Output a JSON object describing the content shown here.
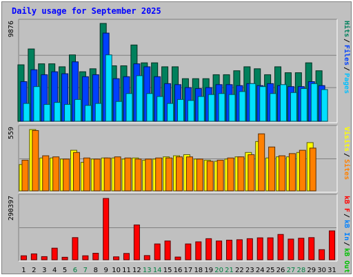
{
  "chart_data": {
    "type": "bar",
    "title": "Daily usage for September 2025",
    "categories": [
      "1",
      "2",
      "3",
      "4",
      "5",
      "6",
      "7",
      "8",
      "9",
      "10",
      "11",
      "12",
      "13",
      "14",
      "15",
      "16",
      "17",
      "18",
      "19",
      "20",
      "21",
      "22",
      "23",
      "24",
      "25",
      "26",
      "27",
      "28",
      "29",
      "30",
      "31"
    ],
    "weekend_days": [
      "6",
      "7",
      "13",
      "14",
      "20",
      "21",
      "27",
      "28"
    ],
    "panels": [
      {
        "name": "hits-files-pages",
        "ymax_label": "9876",
        "ymax": 9876,
        "legend": [
          {
            "label": "Hits",
            "color": "#00805c"
          },
          {
            "label": "Files",
            "color": "#0040ff"
          },
          {
            "label": "Pages",
            "color": "#00c0ff"
          }
        ],
        "series": [
          {
            "name": "Hits",
            "color": "#00805c",
            "values": [
              5700,
              7300,
              5800,
              5800,
              5500,
              6700,
              5000,
              5300,
              9876,
              5600,
              5600,
              7700,
              5900,
              5900,
              5500,
              5500,
              4300,
              4300,
              4300,
              4700,
              4700,
              5100,
              5500,
              5300,
              4700,
              5500,
              4900,
              4900,
              5900,
              5100,
              null
            ]
          },
          {
            "name": "Files",
            "color": "#0040ff",
            "values": [
              4000,
              5200,
              4700,
              5000,
              4800,
              6000,
              4500,
              4700,
              8900,
              4300,
              4500,
              5800,
              5500,
              4500,
              3800,
              3700,
              3400,
              3300,
              3400,
              3700,
              3700,
              3600,
              3800,
              3600,
              3800,
              3600,
              3500,
              3500,
              4000,
              3600,
              null
            ]
          },
          {
            "name": "Pages",
            "color": "#00e0ff",
            "values": [
              1800,
              3500,
              1700,
              1900,
              1700,
              2200,
              1600,
              1800,
              6700,
              2000,
              2800,
              4600,
              2800,
              2500,
              1800,
              2200,
              2100,
              2500,
              2700,
              2800,
              2700,
              3000,
              3800,
              3500,
              2800,
              3700,
              2900,
              3300,
              3800,
              3200,
              null
            ]
          }
        ]
      },
      {
        "name": "visits-sites",
        "ymax_label": "559",
        "ymax": 559,
        "legend": [
          {
            "label": "Visits",
            "color": "#ffff00"
          },
          {
            "label": "Sites",
            "color": "#ff8000"
          }
        ],
        "series": [
          {
            "name": "Visits",
            "color": "#ffff00",
            "values": [
              240,
              559,
              300,
              300,
              290,
              370,
              260,
              290,
              300,
              300,
              290,
              300,
              280,
              290,
              310,
              320,
              330,
              290,
              280,
              270,
              290,
              310,
              350,
              450,
              300,
              310,
              310,
              350,
              440,
              null,
              null
            ]
          },
          {
            "name": "Sites",
            "color": "#ff8000",
            "values": [
              280,
              550,
              320,
              310,
              290,
              350,
              300,
              290,
              300,
              310,
              300,
              290,
              290,
              300,
              300,
              310,
              310,
              290,
              270,
              280,
              300,
              310,
              330,
              520,
              400,
              320,
              340,
              370,
              390,
              null,
              null
            ]
          }
        ]
      },
      {
        "name": "kbytes",
        "ymax_label": "290397",
        "ymax": 290397,
        "legend": [
          {
            "label": "kB F",
            "color": "#ff0000"
          },
          {
            "label": "kB In",
            "color": "#0080ff"
          },
          {
            "label": "kB Out",
            "color": "#00c000"
          }
        ],
        "series": [
          {
            "name": "kB F",
            "color": "#ff0000",
            "values": [
              19000,
              28000,
              15000,
              55000,
              12000,
              105000,
              19000,
              31000,
              290397,
              14000,
              30000,
              165000,
              20000,
              75000,
              89000,
              13000,
              75000,
              85000,
              100000,
              89000,
              93000,
              95000,
              100000,
              104000,
              104000,
              120000,
              98000,
              102000,
              105000,
              48000,
              137000
            ]
          }
        ]
      }
    ]
  }
}
